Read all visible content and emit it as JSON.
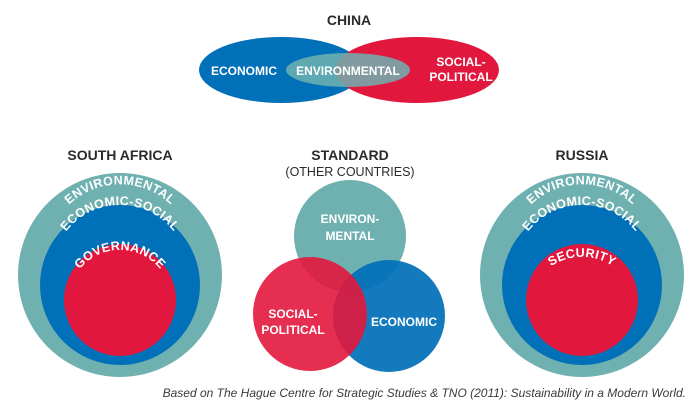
{
  "colors": {
    "blue": "#0070b8",
    "red": "#e2173d",
    "teal": "#6fb1b0",
    "heading_text": "#2b2b2b"
  },
  "china": {
    "title": "CHINA",
    "left_label": "ECONOMIC",
    "center_label": "ENVIRONMENTAL",
    "right_label_line1": "SOCIAL-",
    "right_label_line2": "POLITICAL"
  },
  "south_africa": {
    "title": "SOUTH AFRICA",
    "outer_label": "ENVIRONMENTAL",
    "middle_label": "ECONOMIC-SOCIAL",
    "inner_label": "GOVERNANCE"
  },
  "standard": {
    "title": "STANDARD",
    "subtitle": "(OTHER COUNTRIES)",
    "top_label_line1": "ENVIRON-",
    "top_label_line2": "MENTAL",
    "left_label_line1": "SOCIAL-",
    "left_label_line2": "POLITICAL",
    "right_label": "ECONOMIC"
  },
  "russia": {
    "title": "RUSSIA",
    "outer_label": "ENVIRONMENTAL",
    "middle_label": "ECONOMIC-SOCIAL",
    "inner_label": "SECURITY"
  },
  "footer": "Based on The Hague Centre for Strategic Studies & TNO (2011): Sustainability in a Modern World."
}
